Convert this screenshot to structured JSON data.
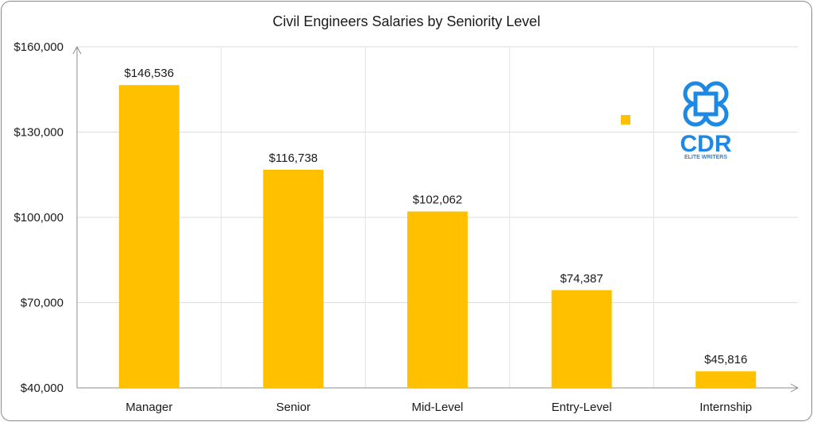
{
  "chart_data": {
    "type": "bar",
    "title": "Civil Engineers Salaries by Seniority Level",
    "categories": [
      "Manager",
      "Senior",
      "Mid-Level",
      "Entry-Level",
      "Internship"
    ],
    "values": [
      146536,
      116738,
      102062,
      74387,
      45816
    ],
    "value_labels": [
      "$146,536",
      "$116,738",
      "$102,062",
      "$74,387",
      "$45,816"
    ],
    "y_ticks": [
      40000,
      70000,
      100000,
      130000,
      160000
    ],
    "y_tick_labels": [
      "$40,000",
      "$70,000",
      "$100,000",
      "$130,000",
      "$160,000"
    ],
    "ylim": [
      40000,
      160000
    ],
    "grid": true,
    "bar_color": "#FFC000"
  },
  "logo": {
    "letters": "CDR",
    "tagline": "ELITE WRITERS",
    "color": "#1E88E5"
  },
  "decor": {
    "marker_color": "#FFC000"
  }
}
